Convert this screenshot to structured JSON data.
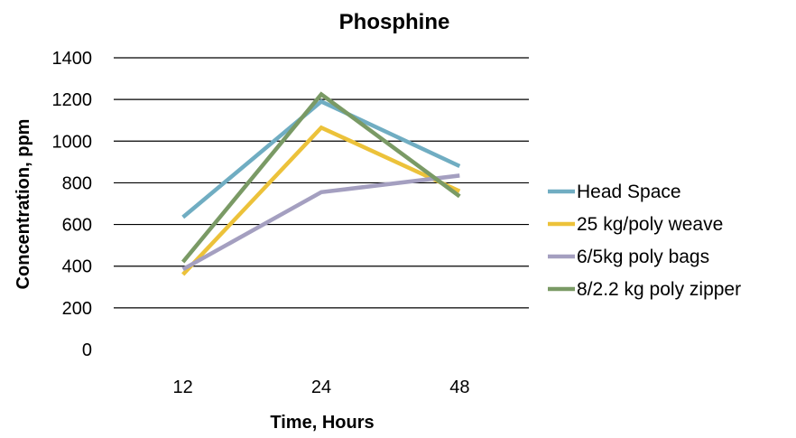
{
  "chart_data": {
    "type": "line",
    "title": "Phosphine",
    "xlabel": "Time, Hours",
    "ylabel": "Concentration, ppm",
    "categories": [
      "12",
      "24",
      "48"
    ],
    "ylim": [
      0,
      1400
    ],
    "yticks": [
      0,
      200,
      400,
      600,
      800,
      1000,
      1200,
      1400
    ],
    "grid": true,
    "legend_position": "right",
    "series": [
      {
        "name": "Head Space",
        "values": [
          635,
          1190,
          880
        ],
        "color": "#70adc2"
      },
      {
        "name": "25 kg/poly weave",
        "values": [
          360,
          1065,
          760
        ],
        "color": "#ecc23a"
      },
      {
        "name": "6/5kg poly bags",
        "values": [
          385,
          755,
          835
        ],
        "color": "#a49fc0"
      },
      {
        "name": "8/2.2 kg poly zipper",
        "values": [
          420,
          1225,
          735
        ],
        "color": "#7a9a65"
      }
    ]
  }
}
